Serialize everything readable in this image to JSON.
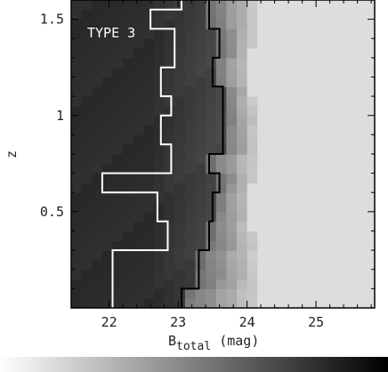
{
  "chart_data": {
    "type": "heatmap",
    "panel_label": "TYPE 3",
    "xlabel_main": "B",
    "xlabel_sub": "total",
    "xlabel_unit": "(mag)",
    "ylabel": "z",
    "xlim": [
      21.45,
      25.85
    ],
    "ylim": [
      0.0,
      1.6
    ],
    "x_ticks": [
      {
        "value": 22,
        "label": "22"
      },
      {
        "value": 23,
        "label": "23"
      },
      {
        "value": 24,
        "label": "24"
      },
      {
        "value": 25,
        "label": "25"
      }
    ],
    "y_ticks": [
      {
        "value": 0.5,
        "label": "0.5"
      },
      {
        "value": 1.0,
        "label": "1"
      },
      {
        "value": 1.5,
        "label": "1.5"
      }
    ],
    "x_bin_width": 0.15,
    "y_bin_height": 0.05,
    "colorbar": {
      "from": "#ffffff",
      "to": "#000000"
    },
    "white_contour": [
      [
        22.05,
        0.0
      ],
      [
        22.05,
        0.05
      ],
      [
        22.05,
        0.1
      ],
      [
        22.05,
        0.15
      ],
      [
        22.05,
        0.2
      ],
      [
        22.05,
        0.25
      ],
      [
        22.05,
        0.3
      ],
      [
        22.85,
        0.3
      ],
      [
        22.85,
        0.45
      ],
      [
        22.7,
        0.45
      ],
      [
        22.7,
        0.6
      ],
      [
        21.9,
        0.6
      ],
      [
        21.9,
        0.7
      ],
      [
        22.9,
        0.7
      ],
      [
        22.9,
        0.85
      ],
      [
        22.75,
        0.85
      ],
      [
        22.75,
        1.0
      ],
      [
        22.9,
        1.0
      ],
      [
        22.9,
        1.1
      ],
      [
        22.75,
        1.1
      ],
      [
        22.75,
        1.25
      ],
      [
        22.95,
        1.25
      ],
      [
        22.95,
        1.45
      ],
      [
        22.6,
        1.45
      ],
      [
        22.6,
        1.55
      ],
      [
        23.05,
        1.55
      ],
      [
        23.05,
        1.6
      ]
    ],
    "black_contour": [
      [
        23.05,
        0.0
      ],
      [
        23.05,
        0.1
      ],
      [
        23.3,
        0.1
      ],
      [
        23.3,
        0.3
      ],
      [
        23.45,
        0.3
      ],
      [
        23.45,
        0.45
      ],
      [
        23.5,
        0.45
      ],
      [
        23.5,
        0.6
      ],
      [
        23.6,
        0.6
      ],
      [
        23.6,
        0.7
      ],
      [
        23.45,
        0.7
      ],
      [
        23.45,
        0.8
      ],
      [
        23.65,
        0.8
      ],
      [
        23.65,
        1.15
      ],
      [
        23.5,
        1.15
      ],
      [
        23.5,
        1.3
      ],
      [
        23.6,
        1.3
      ],
      [
        23.6,
        1.45
      ],
      [
        23.45,
        1.45
      ],
      [
        23.45,
        1.6
      ]
    ],
    "grid": false,
    "legend": "none"
  }
}
